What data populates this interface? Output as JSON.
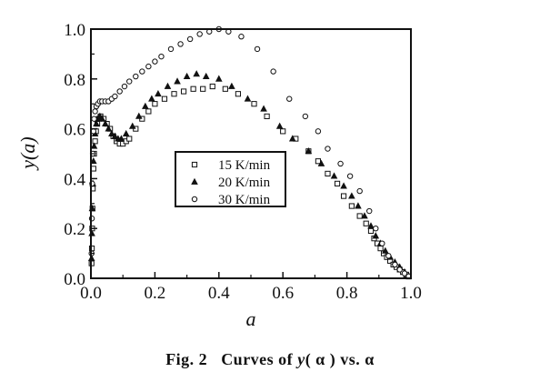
{
  "caption": {
    "fig_label": "Fig. 2",
    "title_prefix": "Curves of ",
    "title_func": "y",
    "title_arg": "( α )",
    "title_mid": " vs. ",
    "title_var": "α"
  },
  "chart_data": {
    "type": "scatter",
    "title": "",
    "xlabel": "a",
    "ylabel": "y(a)",
    "xlim": [
      0.0,
      1.0
    ],
    "ylim": [
      0.0,
      1.0
    ],
    "xticks": [
      "0.0",
      "0.2",
      "0.4",
      "0.6",
      "0.8",
      "1.0"
    ],
    "yticks": [
      "0.0",
      "0.2",
      "0.4",
      "0.6",
      "0.8",
      "1.0"
    ],
    "grid": false,
    "legend_position": "center",
    "series": [
      {
        "name": "15 K/min",
        "marker": "square",
        "x": [
          0.002,
          0.003,
          0.004,
          0.005,
          0.006,
          0.008,
          0.01,
          0.013,
          0.016,
          0.02,
          0.025,
          0.03,
          0.04,
          0.05,
          0.06,
          0.07,
          0.08,
          0.09,
          0.1,
          0.11,
          0.12,
          0.14,
          0.16,
          0.18,
          0.2,
          0.23,
          0.26,
          0.29,
          0.32,
          0.35,
          0.38,
          0.42,
          0.46,
          0.51,
          0.55,
          0.6,
          0.64,
          0.68,
          0.71,
          0.74,
          0.77,
          0.79,
          0.815,
          0.84,
          0.86,
          0.875,
          0.885,
          0.895,
          0.905,
          0.915,
          0.925,
          0.935,
          0.945,
          0.955,
          0.965,
          0.975,
          0.985,
          0.993
        ],
        "y": [
          0.06,
          0.12,
          0.2,
          0.28,
          0.36,
          0.44,
          0.5,
          0.55,
          0.59,
          0.62,
          0.64,
          0.65,
          0.64,
          0.62,
          0.6,
          0.57,
          0.55,
          0.54,
          0.54,
          0.55,
          0.56,
          0.6,
          0.64,
          0.67,
          0.7,
          0.72,
          0.74,
          0.75,
          0.76,
          0.76,
          0.77,
          0.76,
          0.74,
          0.7,
          0.65,
          0.59,
          0.56,
          0.51,
          0.47,
          0.42,
          0.38,
          0.33,
          0.29,
          0.25,
          0.22,
          0.19,
          0.16,
          0.14,
          0.12,
          0.1,
          0.085,
          0.07,
          0.055,
          0.045,
          0.035,
          0.025,
          0.015,
          0.007
        ]
      },
      {
        "name": "20 K/min",
        "marker": "triangle",
        "x": [
          0.002,
          0.003,
          0.004,
          0.006,
          0.008,
          0.01,
          0.013,
          0.017,
          0.022,
          0.028,
          0.035,
          0.045,
          0.055,
          0.065,
          0.075,
          0.085,
          0.095,
          0.11,
          0.13,
          0.15,
          0.17,
          0.19,
          0.21,
          0.24,
          0.27,
          0.3,
          0.33,
          0.36,
          0.4,
          0.44,
          0.49,
          0.54,
          0.59,
          0.63,
          0.68,
          0.72,
          0.76,
          0.79,
          0.815,
          0.835,
          0.855,
          0.875,
          0.89,
          0.905,
          0.92,
          0.935,
          0.95,
          0.965,
          0.98,
          0.993
        ],
        "y": [
          0.08,
          0.18,
          0.28,
          0.38,
          0.47,
          0.53,
          0.58,
          0.62,
          0.64,
          0.65,
          0.64,
          0.62,
          0.6,
          0.58,
          0.57,
          0.56,
          0.56,
          0.58,
          0.61,
          0.65,
          0.69,
          0.72,
          0.74,
          0.77,
          0.79,
          0.81,
          0.82,
          0.81,
          0.8,
          0.77,
          0.72,
          0.68,
          0.61,
          0.56,
          0.51,
          0.46,
          0.41,
          0.37,
          0.33,
          0.29,
          0.25,
          0.21,
          0.17,
          0.14,
          0.11,
          0.085,
          0.065,
          0.045,
          0.025,
          0.01
        ]
      },
      {
        "name": "30 K/min",
        "marker": "circle",
        "x": [
          0.002,
          0.003,
          0.004,
          0.006,
          0.008,
          0.01,
          0.013,
          0.017,
          0.022,
          0.028,
          0.035,
          0.045,
          0.055,
          0.065,
          0.075,
          0.09,
          0.105,
          0.12,
          0.14,
          0.16,
          0.18,
          0.2,
          0.22,
          0.25,
          0.28,
          0.31,
          0.34,
          0.37,
          0.4,
          0.43,
          0.47,
          0.52,
          0.57,
          0.62,
          0.67,
          0.71,
          0.74,
          0.78,
          0.81,
          0.84,
          0.87,
          0.89,
          0.91,
          0.93,
          0.95,
          0.965,
          0.98,
          0.993
        ],
        "y": [
          0.1,
          0.24,
          0.38,
          0.5,
          0.59,
          0.64,
          0.67,
          0.69,
          0.7,
          0.71,
          0.71,
          0.71,
          0.71,
          0.72,
          0.73,
          0.75,
          0.77,
          0.79,
          0.81,
          0.83,
          0.85,
          0.87,
          0.89,
          0.92,
          0.94,
          0.96,
          0.98,
          0.99,
          1.0,
          0.99,
          0.97,
          0.92,
          0.83,
          0.72,
          0.65,
          0.59,
          0.52,
          0.46,
          0.41,
          0.35,
          0.27,
          0.2,
          0.14,
          0.09,
          0.055,
          0.035,
          0.02,
          0.008
        ]
      }
    ]
  }
}
